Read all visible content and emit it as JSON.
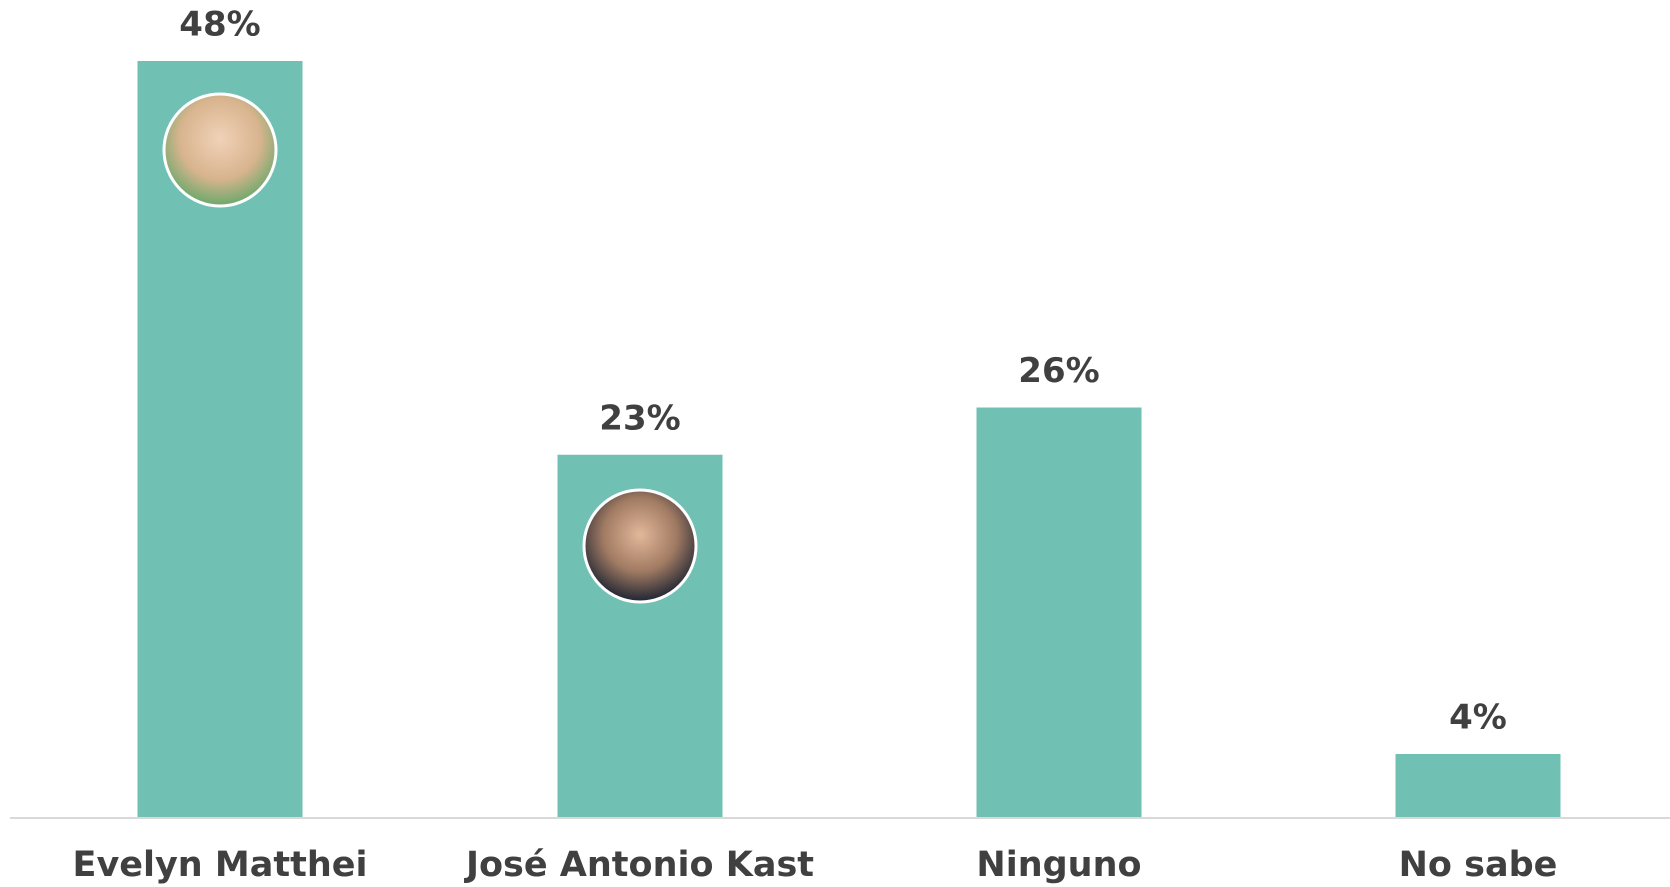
{
  "chart_data": {
    "type": "bar",
    "categories": [
      "Evelyn Matthei",
      "José Antonio Kast",
      "Ninguno",
      "No sabe"
    ],
    "values": [
      48,
      23,
      26,
      4
    ],
    "value_labels": [
      "48%",
      "23%",
      "26%",
      "4%"
    ],
    "color": "#70c1b3"
  }
}
